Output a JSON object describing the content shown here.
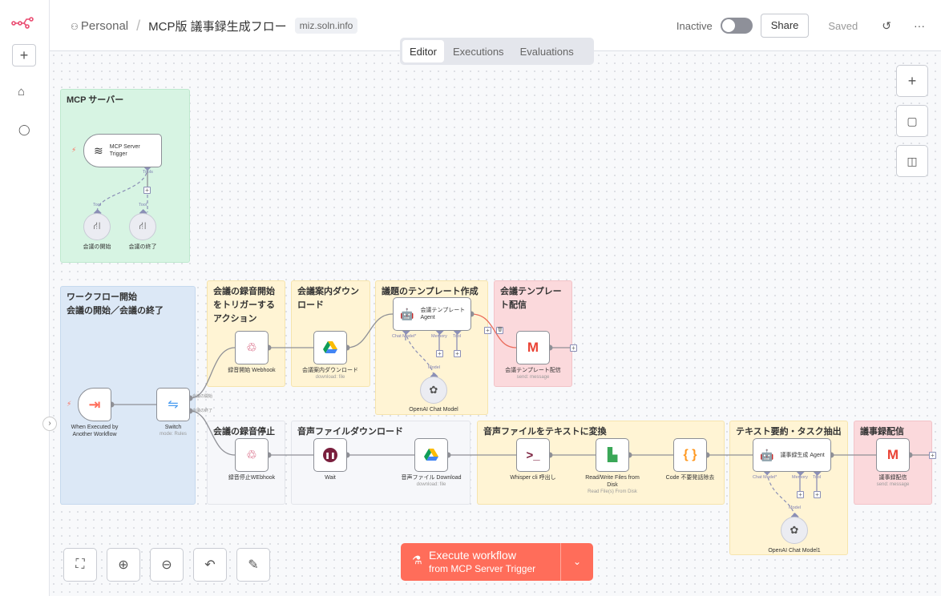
{
  "header": {
    "project": "Personal",
    "title": "MCP版 議事録生成フロー",
    "tag": "miz.soln.info",
    "status": "Inactive",
    "share": "Share",
    "saved": "Saved",
    "active": false
  },
  "tabs": [
    {
      "label": "Editor",
      "active": true
    },
    {
      "label": "Executions"
    },
    {
      "label": "Evaluations"
    }
  ],
  "notes": {
    "mcp": "MCP サーバー",
    "start": "ワークフロー開始\n会議の開始／会議の終了",
    "rec_start": "会議の録音開始をトリガーするアクション",
    "guide_dl": "会議案内ダウンロード",
    "template": "議題のテンプレート作成",
    "template_send": "会議テンプレート配信",
    "rec_stop": "会議の録音停止",
    "audio_dl": "音声ファイルダウンロード",
    "transcribe": "音声ファイルをテキストに変換",
    "summary": "テキスト要約・タスク抽出",
    "minutes_send": "議事録配信"
  },
  "nodes": {
    "mcp_trigger": "MCP Server Trigger",
    "tool1": "会議の開始",
    "tool2": "会議の終了",
    "exec_trigger": "When Executed by Another Workflow",
    "switch": "Switch",
    "switch_sub": "mode: Rules",
    "switch_out1": "会議の開始",
    "switch_out2": "会議の終了",
    "webhook_start": "録音開始 Webhook",
    "gdrive1": "会議案内ダウンロード",
    "gdrive1_sub": "download: file",
    "agent1": "会議テンプレート Agent",
    "openai1": "OpenAI Chat Model",
    "gmail1": "会議テンプレート配信",
    "gmail1_sub": "send: message",
    "webhook_stop": "録音停止WEbhook",
    "wait": "Wait",
    "gdrive2": "音声ファイル Download",
    "gdrive2_sub": "download: file",
    "whisper": "Whisper cli 呼出し",
    "rw": "Read/Write Files from Disk",
    "rw_sub": "Read File(s) From Disk",
    "code": "Code 不要発話除去",
    "agent2": "議事録生成 Agent",
    "openai2": "OpenAI Chat Model1",
    "gmail2": "議事録配信",
    "gmail2_sub": "send: message"
  },
  "ports": {
    "tools": "Tools",
    "tool": "Tool",
    "chat_model": "Chat Model*",
    "memory": "Memory",
    "model": "Model"
  },
  "execute": {
    "label": "Execute workflow",
    "sub": "from MCP Server Trigger"
  },
  "colors": {
    "brand": "#ea4b71",
    "execute": "#ff6d5a"
  }
}
